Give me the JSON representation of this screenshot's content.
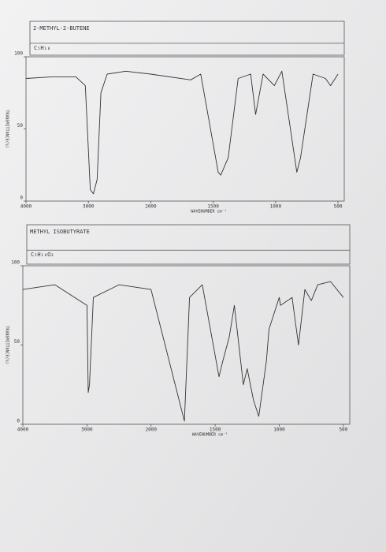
{
  "chart_data": [
    {
      "type": "line",
      "title": "2-METHYL-2-BUTENE",
      "formula": "C₅H₁₀",
      "xlabel": "WAVENUMBER cm⁻¹",
      "ylabel": "TRANSMITTANCE(%)",
      "x": [
        4000,
        3600,
        3200,
        3050,
        2970,
        2920,
        2860,
        2800,
        2700,
        2400,
        2000,
        1680,
        1600,
        1460,
        1440,
        1380,
        1300,
        1200,
        1160,
        1100,
        1010,
        950,
        830,
        800,
        700,
        600,
        560,
        500
      ],
      "series": [
        {
          "color": "#333333",
          "values": [
            85,
            86,
            86,
            80,
            8,
            5,
            15,
            75,
            88,
            90,
            88,
            84,
            88,
            20,
            18,
            30,
            85,
            88,
            60,
            88,
            80,
            90,
            20,
            30,
            88,
            85,
            80,
            88
          ]
        }
      ],
      "xlim": [
        4000,
        450
      ],
      "xticks": [
        4000,
        3000,
        2000,
        1500,
        1000,
        500
      ],
      "ylim": [
        0,
        100
      ],
      "yticks": [
        0,
        50,
        100
      ]
    },
    {
      "type": "line",
      "title": "METHYL ISOBUTYRATE",
      "formula": "C₅H₁₀O₂",
      "xlabel": "WAVENUMBER cm⁻¹",
      "ylabel": "TRANSMITTANCE(%)",
      "x": [
        4000,
        3500,
        3000,
        2980,
        2960,
        2900,
        2500,
        2000,
        1740,
        1700,
        1600,
        1470,
        1440,
        1390,
        1350,
        1280,
        1250,
        1200,
        1160,
        1100,
        1080,
        1000,
        990,
        900,
        850,
        800,
        750,
        700,
        600,
        500
      ],
      "series": [
        {
          "color": "#333333",
          "values": [
            85,
            88,
            75,
            20,
            25,
            80,
            88,
            85,
            2,
            80,
            88,
            30,
            40,
            55,
            75,
            25,
            35,
            15,
            5,
            40,
            60,
            80,
            75,
            80,
            50,
            85,
            78,
            88,
            90,
            80
          ]
        }
      ],
      "xlim": [
        4000,
        450
      ],
      "xticks": [
        4000,
        3000,
        2000,
        1500,
        1000,
        500
      ],
      "ylim": [
        0,
        100
      ],
      "yticks": [
        0,
        50,
        100
      ]
    }
  ]
}
